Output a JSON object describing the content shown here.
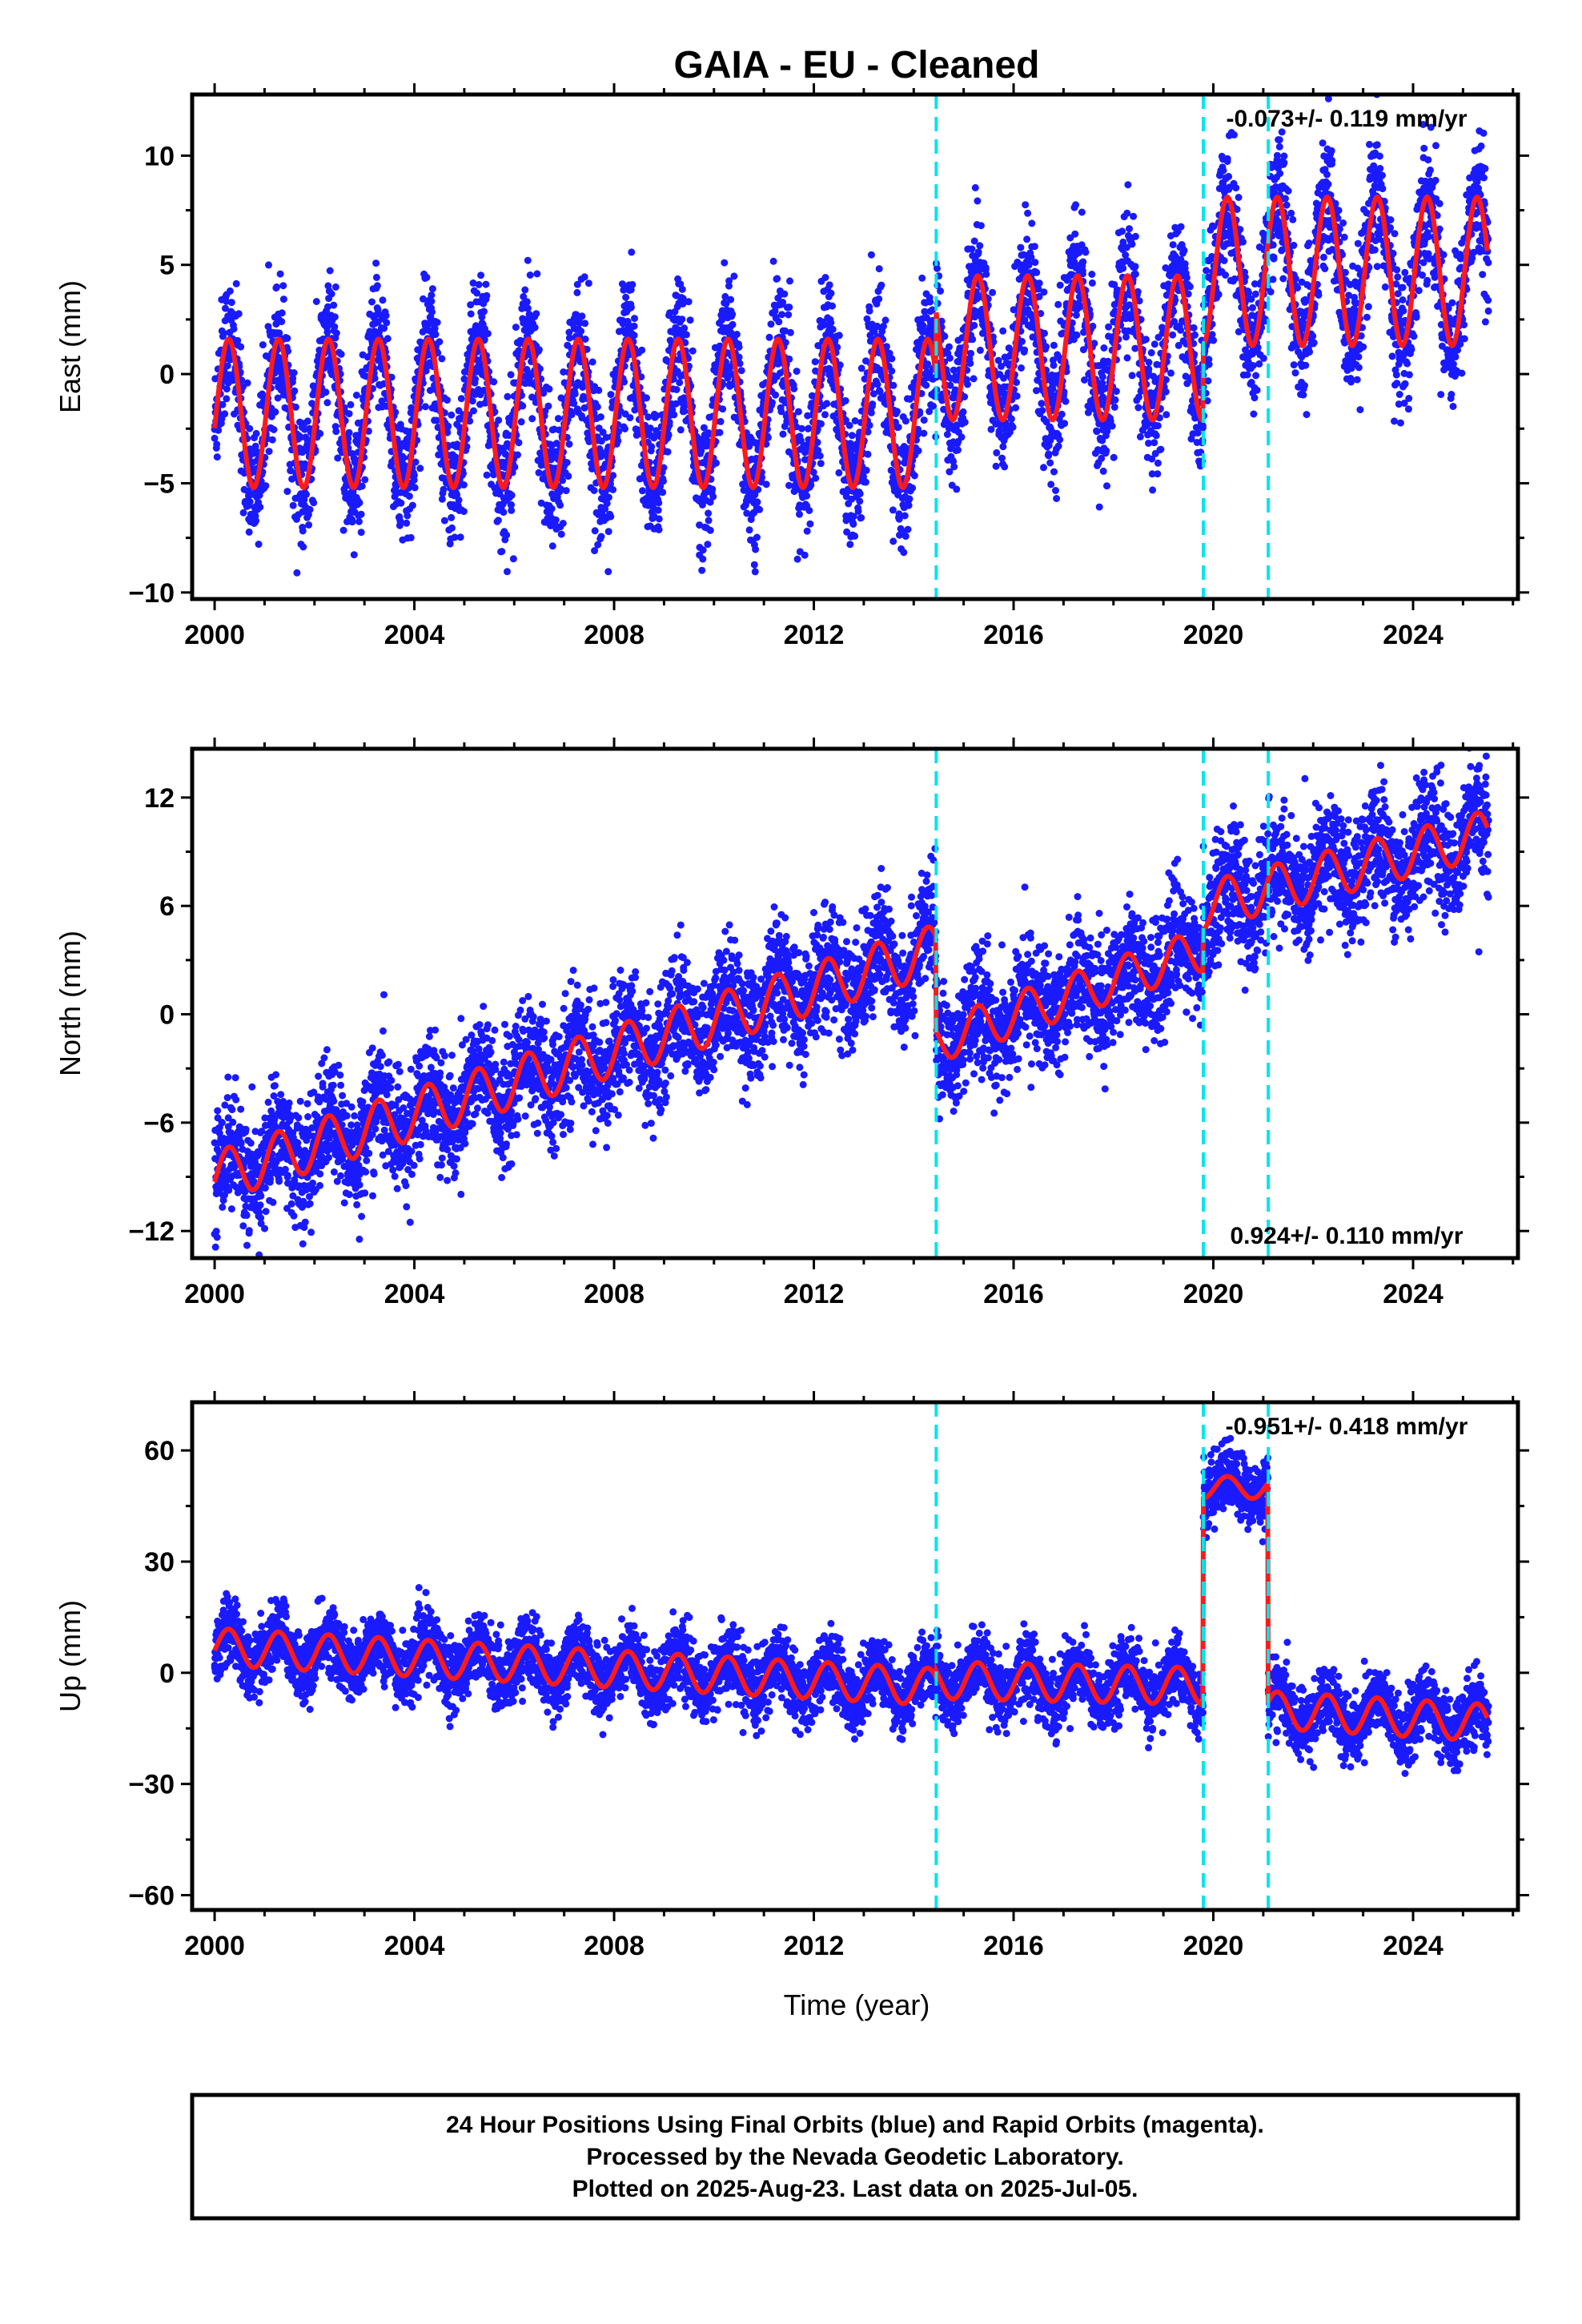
{
  "title": "GAIA  - EU - Cleaned",
  "colors": {
    "data": "#1a1aff",
    "model": "#ff1a1a",
    "breaks": "#00e5ee"
  },
  "chart_data": [
    {
      "type": "scatter",
      "component": "east",
      "ylabel": "East (mm)",
      "xlabel": "",
      "xlim": [
        1999.55,
        2026.1
      ],
      "ylim": [
        -10.3,
        12.8
      ],
      "xticks": [
        2000,
        2004,
        2008,
        2012,
        2016,
        2020,
        2024
      ],
      "xtick_labels": [
        "2000",
        "2004",
        "2008",
        "2012",
        "2016",
        "2020",
        "2024"
      ],
      "yticks": [
        -10,
        -5,
        0,
        5,
        10
      ],
      "ytick_labels": [
        "−10",
        "−5",
        "0",
        "5",
        "10"
      ],
      "rate": "-0.073+/- 0.119 mm/yr",
      "rate_pos": "top",
      "breaks": [
        2014.45,
        2019.8,
        2021.1
      ],
      "offsets": [
        {
          "from": 2000.0,
          "to": 2014.45,
          "base": -1.8,
          "slope": 0.0,
          "amp": 3.4
        },
        {
          "from": 2014.45,
          "to": 2019.8,
          "base": 1.2,
          "slope": 0.0,
          "amp": 3.3
        },
        {
          "from": 2019.8,
          "to": 2025.5,
          "base": 4.7,
          "slope": 0.0,
          "amp": 3.4
        }
      ],
      "noise": 1.5,
      "grid": false
    },
    {
      "type": "scatter",
      "component": "north",
      "ylabel": "North (mm)",
      "xlabel": "",
      "xlim": [
        1999.55,
        2026.1
      ],
      "ylim": [
        -13.5,
        14.7
      ],
      "xticks": [
        2000,
        2004,
        2008,
        2012,
        2016,
        2020,
        2024
      ],
      "xtick_labels": [
        "2000",
        "2004",
        "2008",
        "2012",
        "2016",
        "2020",
        "2024"
      ],
      "yticks": [
        -12,
        -6,
        0,
        6,
        12
      ],
      "ytick_labels": [
        "−12",
        "−6",
        "0",
        "6",
        "12"
      ],
      "rate": "0.924+/- 0.110 mm/yr",
      "rate_pos": "bottom",
      "breaks": [
        2014.45,
        2019.8,
        2021.1
      ],
      "offsets": [
        {
          "from": 2000.0,
          "to": 2014.45,
          "base": -9.0,
          "slope": 0.87,
          "amp": 1.4
        },
        {
          "from": 2014.45,
          "to": 2019.8,
          "base": -1.5,
          "slope": 0.95,
          "amp": 1.2
        },
        {
          "from": 2019.8,
          "to": 2025.5,
          "base": 6.0,
          "slope": 0.7,
          "amp": 1.3
        }
      ],
      "noise": 1.6,
      "grid": false
    },
    {
      "type": "scatter",
      "component": "up",
      "ylabel": "Up (mm)",
      "xlabel": "Time (year)",
      "xlim": [
        1999.55,
        2026.1
      ],
      "ylim": [
        -64,
        73
      ],
      "xticks": [
        2000,
        2004,
        2008,
        2012,
        2016,
        2020,
        2024
      ],
      "xtick_labels": [
        "2000",
        "2004",
        "2008",
        "2012",
        "2016",
        "2020",
        "2024"
      ],
      "yticks": [
        -60,
        -30,
        0,
        30,
        60
      ],
      "ytick_labels": [
        "−60",
        "−30",
        "0",
        "30",
        "60"
      ],
      "rate": "-0.951+/- 0.418 mm/yr",
      "rate_pos": "top",
      "breaks": [
        2014.45,
        2019.8,
        2021.1
      ],
      "offsets": [
        {
          "from": 2000.0,
          "to": 2014.45,
          "base": 7.0,
          "slope": -0.75,
          "amp": 5.0
        },
        {
          "from": 2014.45,
          "to": 2019.8,
          "base": -2.0,
          "slope": -0.3,
          "amp": 5.0
        },
        {
          "from": 2019.8,
          "to": 2021.1,
          "base": 50.0,
          "slope": 0.0,
          "amp": 3.0
        },
        {
          "from": 2021.1,
          "to": 2025.5,
          "base": -10.0,
          "slope": -0.8,
          "amp": 5.0
        }
      ],
      "noise": 4.5,
      "grid": false
    }
  ],
  "footer": {
    "line1": "24 Hour Positions Using Final Orbits (blue) and Rapid Orbits (magenta).",
    "line2": "Processed by the Nevada Geodetic Laboratory.",
    "line3": "Plotted on 2025-Aug-23. Last data on 2025-Jul-05."
  }
}
